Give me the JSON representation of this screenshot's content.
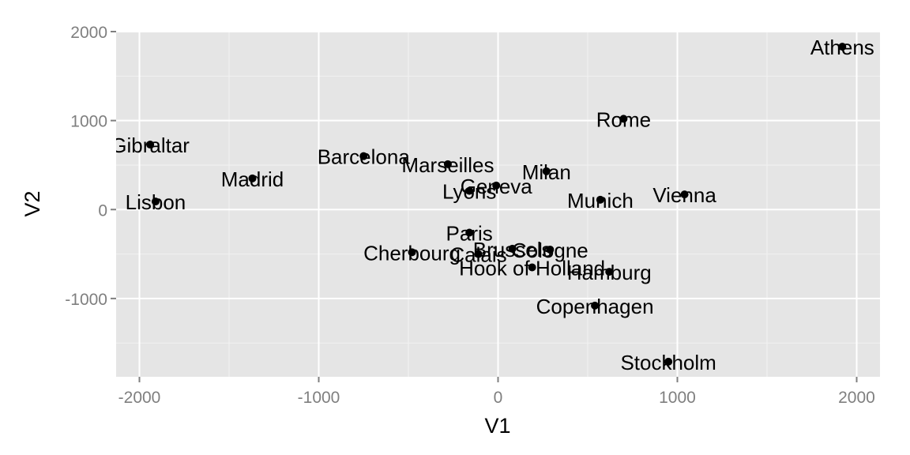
{
  "chart_data": {
    "type": "scatter",
    "title": "",
    "xlabel": "V1",
    "ylabel": "V2",
    "xlim": [
      -2130,
      2130
    ],
    "ylim": [
      -1880,
      2000
    ],
    "x_ticks": [
      -2000,
      -1000,
      0,
      1000,
      2000
    ],
    "y_ticks": [
      -1000,
      0,
      1000,
      2000
    ],
    "grid": true,
    "background": "#e5e5e5",
    "grid_color": "#ffffff",
    "point_color": "#000000",
    "points": [
      {
        "label": "Athens",
        "x": 1920,
        "y": 1830
      },
      {
        "label": "Barcelona",
        "x": -750,
        "y": 600
      },
      {
        "label": "Brussels",
        "x": 80,
        "y": -440
      },
      {
        "label": "Calais",
        "x": -110,
        "y": -500
      },
      {
        "label": "Cherbourg",
        "x": -480,
        "y": -480
      },
      {
        "label": "Cologne",
        "x": 290,
        "y": -450
      },
      {
        "label": "Copenhagen",
        "x": 540,
        "y": -1080
      },
      {
        "label": "Geneva",
        "x": -10,
        "y": 270
      },
      {
        "label": "Gibraltar",
        "x": -1940,
        "y": 730
      },
      {
        "label": "Hamburg",
        "x": 620,
        "y": -700
      },
      {
        "label": "Hook of Holland",
        "x": 190,
        "y": -650
      },
      {
        "label": "Lisbon",
        "x": -1910,
        "y": 90
      },
      {
        "label": "Lyons",
        "x": -160,
        "y": 210
      },
      {
        "label": "Madrid",
        "x": -1370,
        "y": 350
      },
      {
        "label": "Marseilles",
        "x": -280,
        "y": 510
      },
      {
        "label": "Milan",
        "x": 270,
        "y": 430
      },
      {
        "label": "Munich",
        "x": 570,
        "y": 110
      },
      {
        "label": "Paris",
        "x": -160,
        "y": -260
      },
      {
        "label": "Rome",
        "x": 700,
        "y": 1020
      },
      {
        "label": "Stockholm",
        "x": 950,
        "y": -1710
      },
      {
        "label": "Vienna",
        "x": 1040,
        "y": 170
      }
    ]
  }
}
